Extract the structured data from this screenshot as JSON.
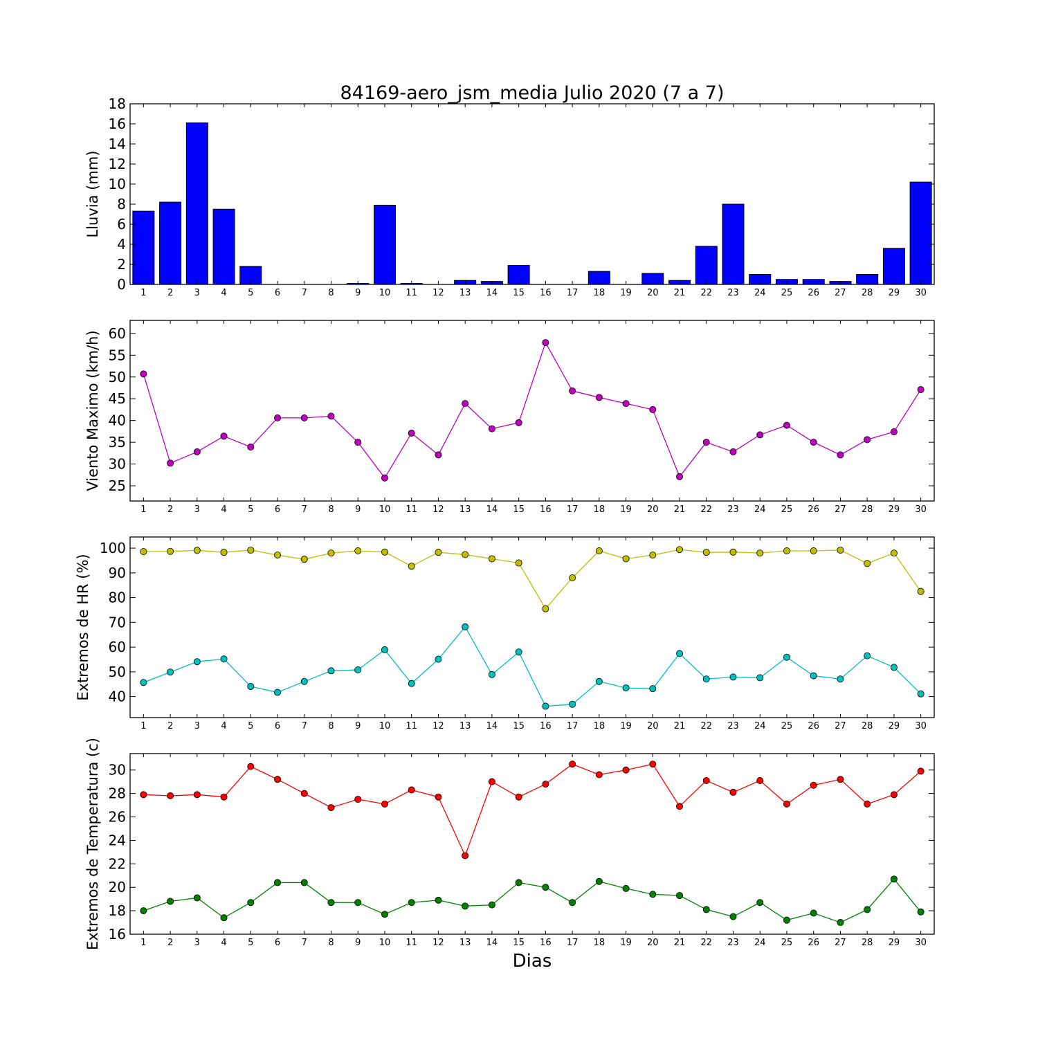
{
  "title": "84169-aero_jsm_media Julio 2020  (7 a 7)",
  "xlabel": "Dias",
  "days": [
    "1",
    "2",
    "3",
    "4",
    "5",
    "6",
    "7",
    "8",
    "9",
    "10",
    "11",
    "12",
    "13",
    "14",
    "15",
    "16",
    "17",
    "18",
    "19",
    "20",
    "21",
    "22",
    "23",
    "24",
    "25",
    "26",
    "27",
    "28",
    "29",
    "30"
  ],
  "chart_data": [
    {
      "type": "bar",
      "ylabel": "Lluvia (mm)",
      "ylim": [
        0,
        18
      ],
      "yticks": [
        0,
        2,
        4,
        6,
        8,
        10,
        12,
        14,
        16,
        18
      ],
      "series": [
        {
          "color": "#0000ff",
          "values": [
            7.3,
            8.2,
            16.1,
            7.5,
            1.8,
            0,
            0,
            0,
            0.1,
            7.9,
            0.1,
            0,
            0.4,
            0.3,
            1.9,
            0,
            0,
            1.3,
            0,
            1.1,
            0.4,
            3.8,
            8.0,
            1.0,
            0.5,
            0.5,
            0.3,
            1.0,
            3.6,
            10.2
          ]
        }
      ]
    },
    {
      "type": "line",
      "ylabel": "Viento Maximo (km/h)",
      "ylim": [
        21.5,
        63
      ],
      "yticks": [
        25,
        30,
        35,
        40,
        45,
        50,
        55,
        60
      ],
      "series": [
        {
          "color": "#bf00bf",
          "values": [
            50.7,
            30.2,
            32.8,
            36.4,
            33.9,
            40.6,
            40.6,
            41.0,
            35.0,
            26.8,
            37.1,
            32.1,
            43.9,
            38.1,
            39.5,
            57.9,
            46.8,
            45.3,
            43.9,
            42.5,
            27.1,
            35.0,
            32.8,
            36.7,
            38.9,
            35.0,
            32.1,
            35.6,
            37.4,
            47.1
          ]
        }
      ]
    },
    {
      "type": "line",
      "ylabel": "Extremos de HR (%)",
      "ylim": [
        31.5,
        104.5
      ],
      "yticks": [
        40,
        50,
        60,
        70,
        80,
        90,
        100
      ],
      "series": [
        {
          "color": "#bfbf00",
          "values": [
            98.6,
            98.7,
            99.1,
            98.3,
            99.2,
            97.2,
            95.5,
            98.0,
            98.9,
            98.4,
            92.7,
            98.3,
            97.4,
            95.7,
            94.0,
            75.5,
            88.0,
            98.9,
            95.7,
            97.2,
            99.4,
            98.3,
            98.4,
            98.0,
            98.9,
            98.9,
            99.2,
            93.8,
            98.0,
            82.5
          ]
        },
        {
          "color": "#00bfbf",
          "values": [
            45.7,
            49.9,
            54.1,
            55.2,
            44.1,
            41.7,
            46.1,
            50.4,
            50.8,
            58.9,
            45.3,
            55.1,
            68.2,
            48.9,
            58.0,
            36.1,
            36.9,
            46.1,
            43.5,
            43.2,
            57.4,
            47.1,
            47.9,
            47.6,
            55.9,
            48.4,
            47.1,
            56.5,
            51.8,
            41.1
          ]
        }
      ]
    },
    {
      "type": "line",
      "ylabel": "Extremos de Temperatura (c)",
      "ylim": [
        16,
        31.4
      ],
      "yticks": [
        16,
        18,
        20,
        22,
        24,
        26,
        28,
        30
      ],
      "series": [
        {
          "color": "#ff0000",
          "values": [
            27.9,
            27.8,
            27.9,
            27.7,
            30.3,
            29.2,
            28.0,
            26.8,
            27.5,
            27.1,
            28.3,
            27.7,
            22.7,
            29.0,
            27.7,
            28.8,
            30.5,
            29.6,
            30.0,
            30.5,
            26.9,
            29.1,
            28.1,
            29.1,
            27.1,
            28.7,
            29.2,
            27.1,
            27.9,
            29.9
          ]
        },
        {
          "color": "#007f00",
          "values": [
            18.0,
            18.8,
            19.1,
            17.4,
            18.7,
            20.4,
            20.4,
            18.7,
            18.7,
            17.7,
            18.7,
            18.9,
            18.4,
            18.5,
            20.4,
            20.0,
            18.7,
            20.5,
            19.9,
            19.4,
            19.3,
            18.1,
            17.5,
            18.7,
            17.2,
            17.8,
            17.0,
            18.1,
            20.7,
            17.9
          ]
        }
      ]
    }
  ]
}
